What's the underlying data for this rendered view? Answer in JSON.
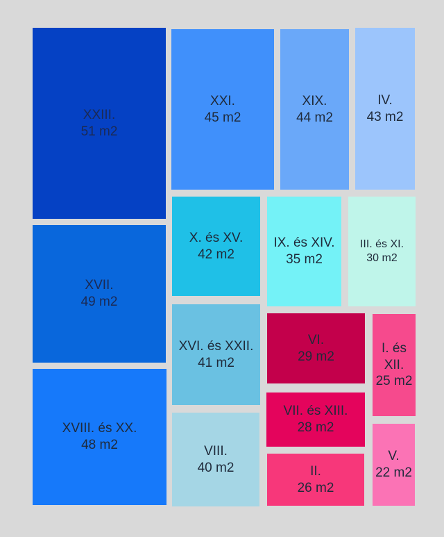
{
  "rooms": [
    {
      "id": "r23",
      "name": "XXIII.",
      "area": "51 m2",
      "color": "#0541c4"
    },
    {
      "id": "r21",
      "name": "XXI.",
      "area": "45 m2",
      "color": "#4090fb"
    },
    {
      "id": "r19",
      "name": "XIX.",
      "area": "44 m2",
      "color": "#6aa8f9"
    },
    {
      "id": "r4",
      "name": "IV.",
      "area": "43 m2",
      "color": "#9cc5fc"
    },
    {
      "id": "r17",
      "name": "XVII.",
      "area": "49 m2",
      "color": "#0967dc"
    },
    {
      "id": "r10",
      "name": "X. és XV.",
      "area": "42 m2",
      "color": "#1fc0e7"
    },
    {
      "id": "r9",
      "name": "IX. és XIV.",
      "area": "35 m2",
      "color": "#74f2f7"
    },
    {
      "id": "r3",
      "name": "III. és XI.",
      "area": "30 m2",
      "color": "#bff5ea"
    },
    {
      "id": "r16",
      "name": "XVI. és XXII.",
      "area": "41 m2",
      "color": "#6ac1e2"
    },
    {
      "id": "r6",
      "name": "VI.",
      "area": "29 m2",
      "color": "#c3004b"
    },
    {
      "id": "r1",
      "name": "I. és XII.",
      "area": "25 m2",
      "color": "#f64a8d"
    },
    {
      "id": "r18",
      "name": "XVIII. és XX.",
      "area": "48 m2",
      "color": "#1679fa"
    },
    {
      "id": "r7",
      "name": "VII. és XIII.",
      "area": "28 m2",
      "color": "#e4045c"
    },
    {
      "id": "r8",
      "name": "VIII.",
      "area": "40 m2",
      "color": "#a5d6e5"
    },
    {
      "id": "r2",
      "name": "II.",
      "area": "26 m2",
      "color": "#f7377a"
    },
    {
      "id": "r5",
      "name": "V.",
      "area": "22 m2",
      "color": "#fb73b5"
    }
  ]
}
